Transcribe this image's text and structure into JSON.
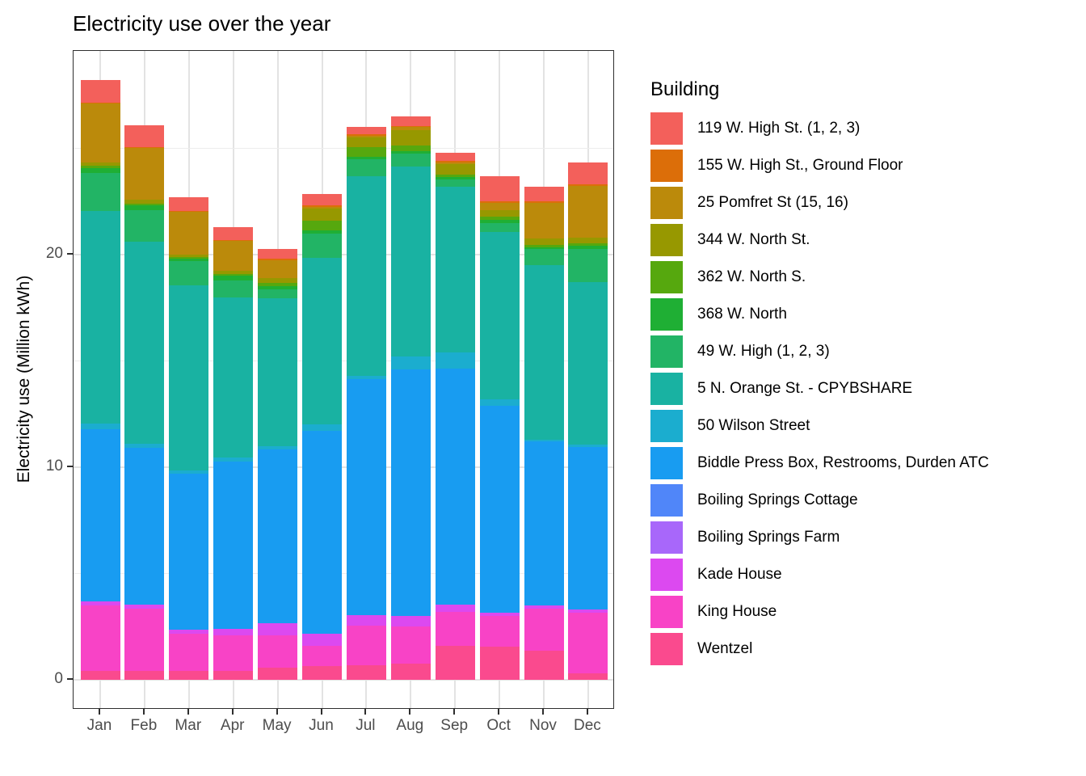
{
  "chart_data": {
    "type": "bar",
    "stacked": true,
    "title": "Electricity use over the year",
    "xlabel": "",
    "ylabel": "Electricity use (Million kWh)",
    "ylim": [
      -1.5,
      29.6
    ],
    "yticks": [
      0,
      10,
      20
    ],
    "yticks_minor": [
      5,
      15,
      25
    ],
    "grid": "on",
    "legend_title": "Building",
    "legend_position": "right",
    "categories": [
      "Jan",
      "Feb",
      "Mar",
      "Apr",
      "May",
      "Jun",
      "Jul",
      "Aug",
      "Sep",
      "Oct",
      "Nov",
      "Dec"
    ],
    "series": [
      {
        "name": "119 W. High St. (1, 2, 3)",
        "color": "#f3605b",
        "values": [
          1.05,
          1.05,
          0.65,
          0.6,
          0.45,
          0.55,
          0.35,
          0.45,
          0.4,
          1.2,
          0.7,
          1.05
        ]
      },
      {
        "name": "155 W. High St., Ground Floor",
        "color": "#dc6e09",
        "values": [
          0.05,
          0.05,
          0.05,
          0.05,
          0.05,
          0.05,
          0.05,
          0.05,
          0.05,
          0.05,
          0.05,
          0.05
        ]
      },
      {
        "name": "25 Pomfret St (15, 16)",
        "color": "#bb8a0b",
        "values": [
          2.75,
          2.4,
          2.0,
          1.4,
          0.85,
          0.1,
          0.1,
          0.15,
          0.1,
          0.35,
          1.7,
          2.45
        ]
      },
      {
        "name": "344 W. North St.",
        "color": "#979800",
        "values": [
          0.15,
          0.2,
          0.1,
          0.15,
          0.25,
          0.55,
          0.45,
          0.7,
          0.5,
          0.3,
          0.3,
          0.25
        ]
      },
      {
        "name": "362 W. North S.",
        "color": "#56a80e",
        "values": [
          0.15,
          0.1,
          0.1,
          0.1,
          0.15,
          0.45,
          0.45,
          0.3,
          0.1,
          0.15,
          0.1,
          0.15
        ]
      },
      {
        "name": "368 W. North",
        "color": "#1faf34",
        "values": [
          0.2,
          0.2,
          0.1,
          0.2,
          0.15,
          0.15,
          0.1,
          0.1,
          0.1,
          0.15,
          0.1,
          0.15
        ]
      },
      {
        "name": "49 W. High (1, 2, 3)",
        "color": "#22b465",
        "values": [
          1.8,
          1.5,
          1.15,
          0.8,
          0.4,
          1.15,
          0.8,
          0.6,
          0.35,
          0.45,
          0.75,
          1.55
        ]
      },
      {
        "name": "5 N. Orange St. - CPYBSHARE",
        "color": "#19b2a2",
        "values": [
          10.0,
          9.5,
          8.7,
          7.55,
          6.95,
          7.85,
          9.4,
          8.95,
          7.8,
          7.85,
          8.2,
          7.65
        ]
      },
      {
        "name": "50 Wilson Street",
        "color": "#1badcf",
        "values": [
          0.25,
          0.2,
          0.15,
          0.2,
          0.15,
          0.3,
          0.15,
          0.6,
          0.75,
          0.3,
          0.1,
          0.1
        ]
      },
      {
        "name": "Biddle Press Box, Restrooms, Durden ATC",
        "color": "#189cf1",
        "values": [
          8.1,
          7.35,
          7.35,
          7.85,
          8.2,
          9.55,
          11.1,
          11.6,
          11.1,
          9.75,
          7.7,
          7.65
        ]
      },
      {
        "name": "Boiling Springs Cottage",
        "color": "#5086f9",
        "values": [
          0,
          0,
          0,
          0,
          0,
          0,
          0,
          0,
          0,
          0,
          0,
          0
        ]
      },
      {
        "name": "Boiling Springs Farm",
        "color": "#a867fa",
        "values": [
          0,
          0,
          0,
          0,
          0,
          0,
          0,
          0,
          0,
          0,
          0,
          0
        ]
      },
      {
        "name": "Kade House",
        "color": "#dc49f0",
        "values": [
          0.2,
          0.2,
          0.2,
          0.3,
          0.55,
          0.55,
          0.5,
          0.5,
          0.35,
          0.15,
          0.15,
          0.15
        ]
      },
      {
        "name": "King House",
        "color": "#f843c6",
        "values": [
          3.1,
          2.95,
          1.75,
          1.7,
          1.55,
          0.95,
          1.85,
          1.75,
          1.6,
          1.45,
          2.0,
          2.85
        ]
      },
      {
        "name": "Wentzel",
        "color": "#fa4a8e",
        "values": [
          0.4,
          0.4,
          0.4,
          0.4,
          0.55,
          0.65,
          0.7,
          0.75,
          1.6,
          1.55,
          1.35,
          0.3
        ]
      }
    ]
  }
}
